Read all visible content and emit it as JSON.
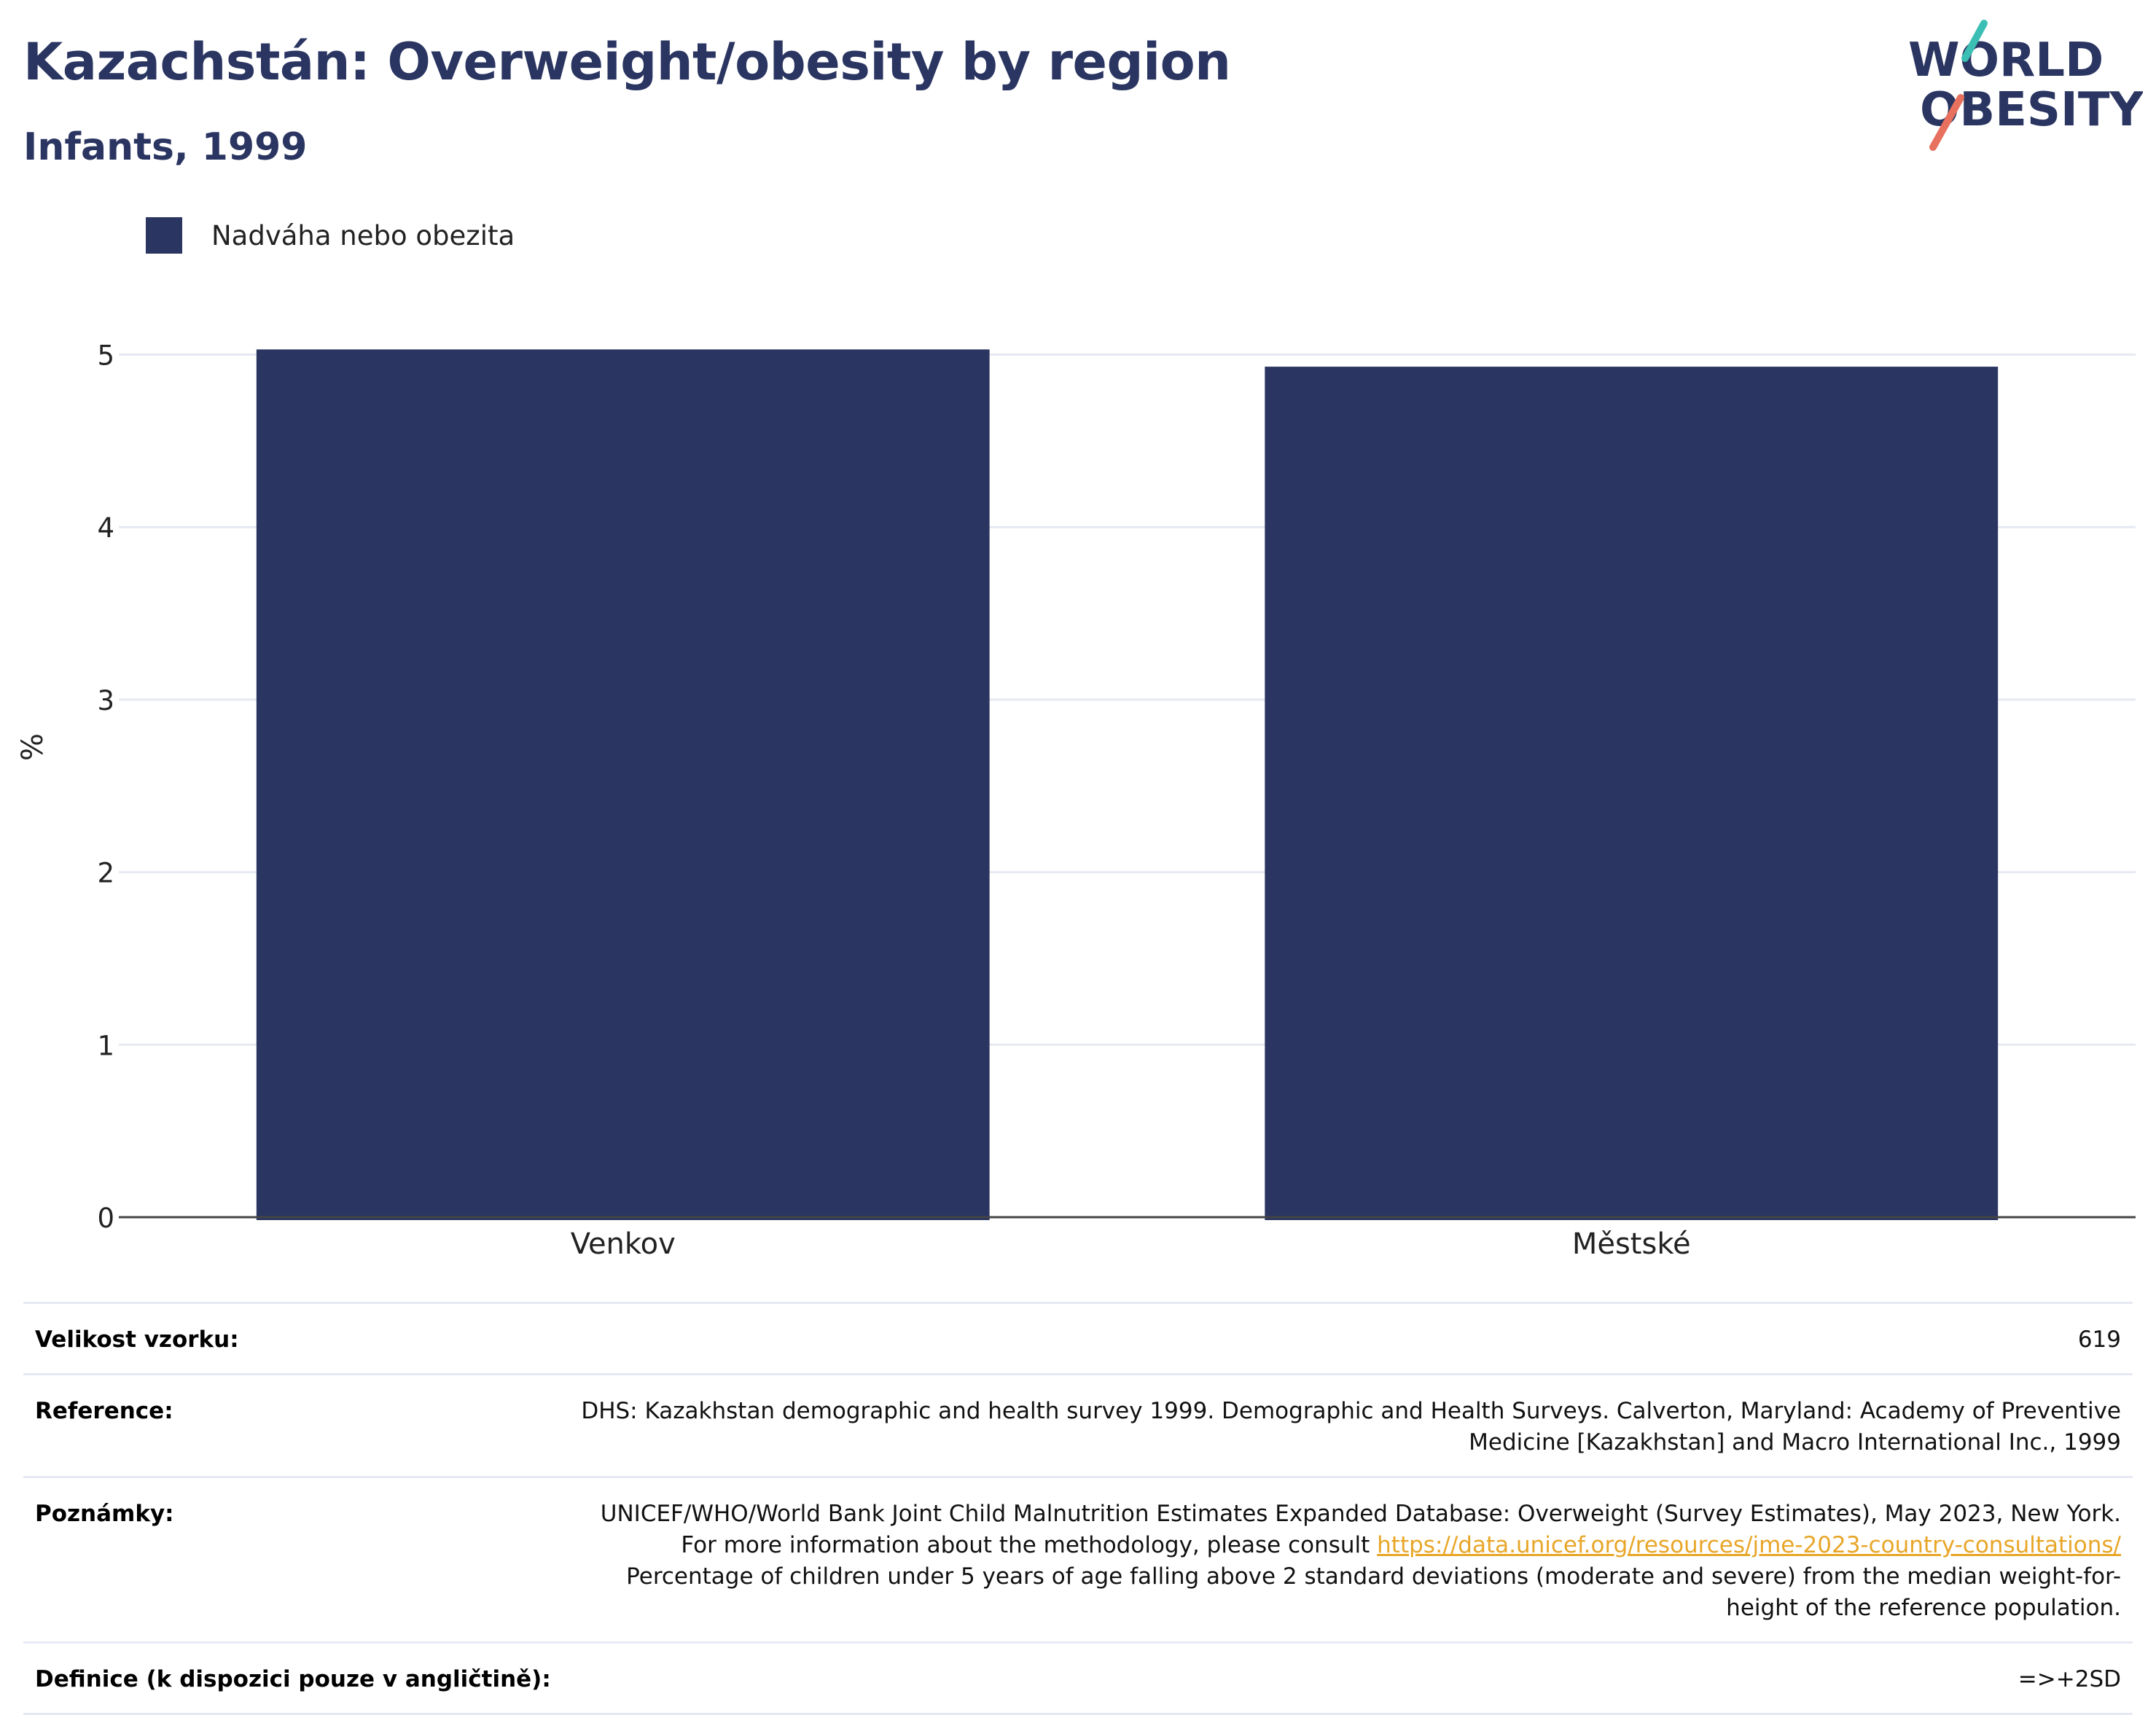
{
  "header": {
    "title": "Kazachstán: Overweight/obesity by region",
    "subtitle": "Infants, 1999",
    "logo_text_line1": "WORLD",
    "logo_text_line2": "OBESITY"
  },
  "colors": {
    "bar": "#2a3561",
    "title": "#2a3561",
    "logo_teal": "#3bbfb4",
    "logo_coral": "#e8705e",
    "link": "#e8a628",
    "grid": "#e6e9f2"
  },
  "chart_data": {
    "type": "bar",
    "categories": [
      "Venkov",
      "Městské"
    ],
    "series": [
      {
        "name": "Nadváha nebo obezita",
        "values": [
          5.03,
          4.93
        ]
      }
    ],
    "ylabel": "%",
    "xlabel": "",
    "ylim": [
      0,
      5.45
    ],
    "yticks": [
      0,
      1,
      2,
      3,
      4,
      5
    ],
    "grid": true,
    "legend_position": "top-left"
  },
  "info": {
    "sample_size_label": "Velikost vzorku:",
    "sample_size_value": "619",
    "reference_label": "Reference:",
    "reference_value": "DHS: Kazakhstan demographic and health survey 1999. Demographic and Health Surveys. Calverton, Maryland: Academy of Preventive Medicine [Kazakhstan] and Macro International Inc., 1999",
    "notes_label": "Poznámky:",
    "notes_text_before": "UNICEF/WHO/World Bank Joint Child Malnutrition Estimates Expanded Database: Overweight (Survey Estimates), May 2023, New York. For more information about the methodology, please consult ",
    "notes_link": "https://data.unicef.org/resources/jme-2023-country-consultations/",
    "notes_text_after": " Percentage of children under 5 years of age falling above 2 standard deviations (moderate and severe) from the median weight-for-height of the reference population.",
    "definition_label": "Definice (k dispozici pouze v angličtině):",
    "definition_value": "=>+2SD"
  }
}
